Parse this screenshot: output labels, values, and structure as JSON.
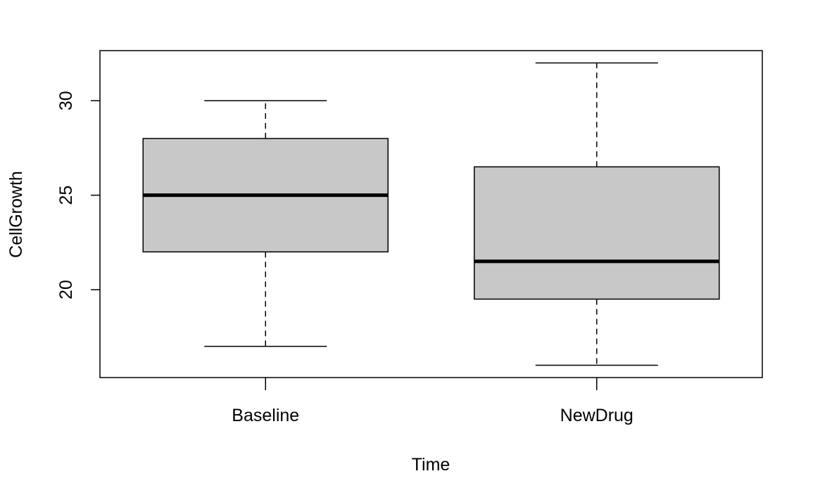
{
  "chart_data": {
    "type": "box",
    "title": "",
    "xlabel": "Time",
    "ylabel": "CellGrowth",
    "ylim": [
      15.35,
      32.65
    ],
    "y_ticks": [
      20,
      25,
      30
    ],
    "y_tick_labels": [
      "20",
      "25",
      "30"
    ],
    "categories": [
      "Baseline",
      "NewDrug"
    ],
    "boxes": [
      {
        "category": "Baseline",
        "min": 17,
        "q1": 22,
        "median": 25,
        "q3": 28,
        "max": 30
      },
      {
        "category": "NewDrug",
        "min": 16,
        "q1": 19.5,
        "median": 21.5,
        "q3": 26.5,
        "max": 32
      }
    ],
    "box_fill": "#c8c8c8",
    "line_color": "#000000",
    "grid": false,
    "legend": "none"
  }
}
